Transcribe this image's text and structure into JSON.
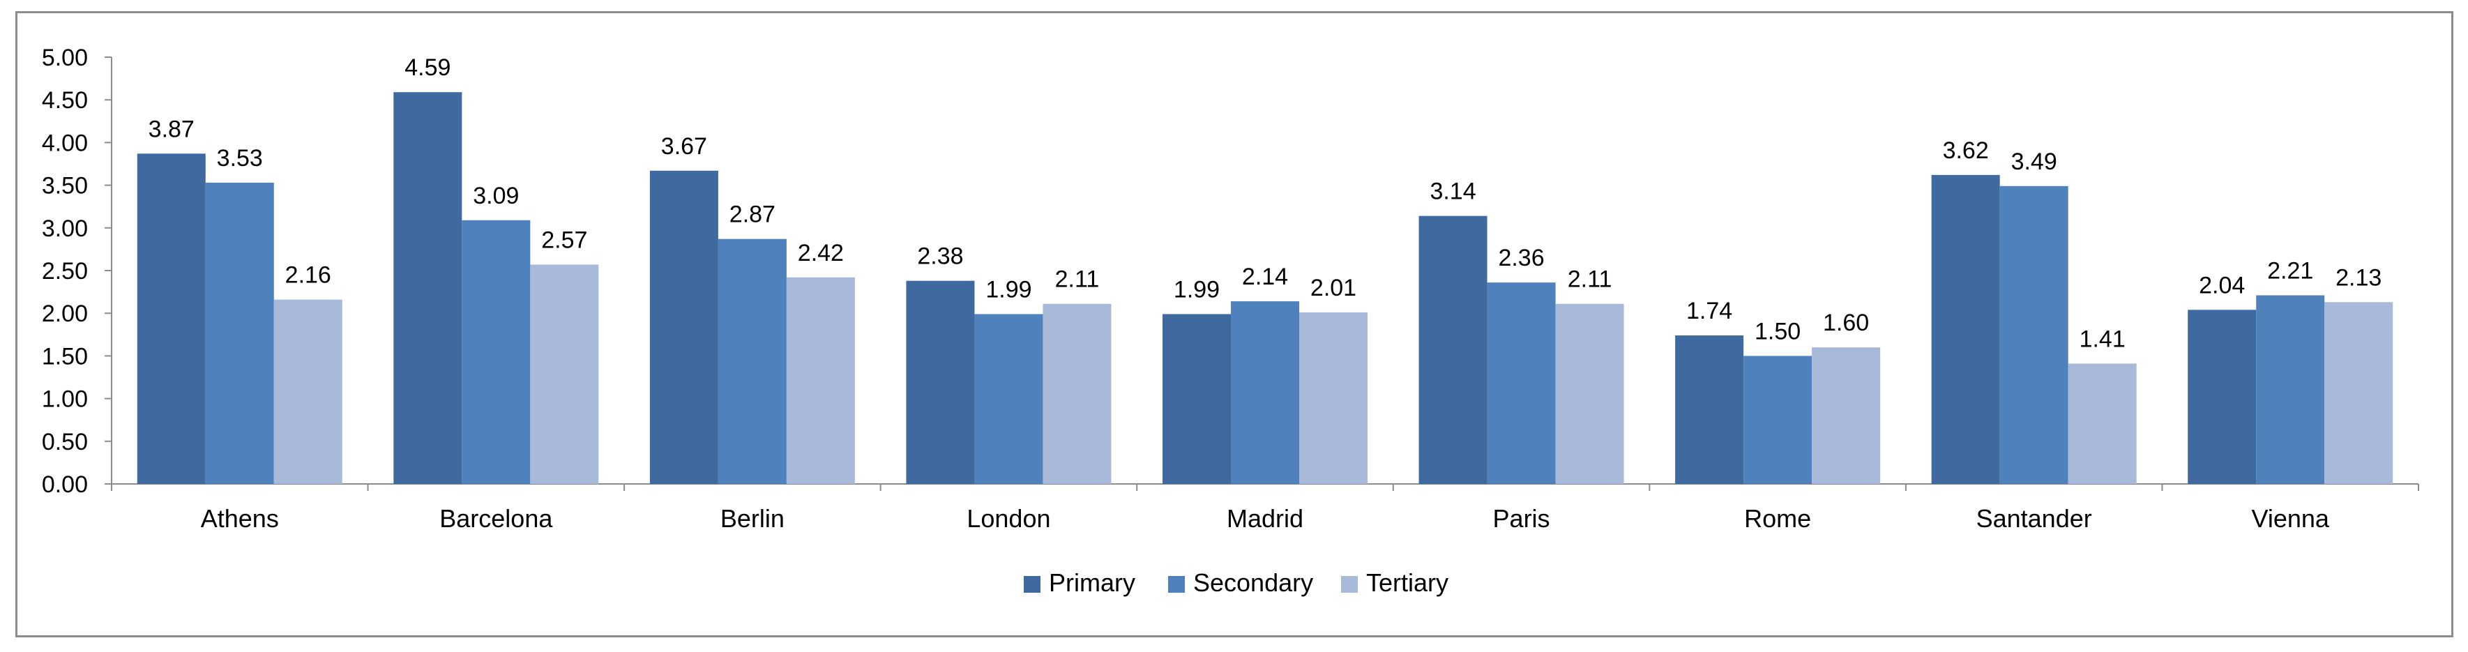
{
  "chart_data": {
    "type": "bar",
    "title": "",
    "xlabel": "",
    "ylabel": "",
    "categories": [
      "Athens",
      "Barcelona",
      "Berlin",
      "London",
      "Madrid",
      "Paris",
      "Rome",
      "Santander",
      "Vienna"
    ],
    "series": [
      {
        "name": "Primary",
        "color": "#3F6A9F",
        "values": [
          3.87,
          4.59,
          3.67,
          2.38,
          1.99,
          3.14,
          1.74,
          3.62,
          2.04
        ],
        "labels": [
          "3.87",
          "4.59",
          "3.67",
          "2.38",
          "1.99",
          "3.14",
          "1.74",
          "3.62",
          "2.04"
        ]
      },
      {
        "name": "Secondary",
        "color": "#4F81BD",
        "values": [
          3.53,
          3.09,
          2.87,
          1.99,
          2.14,
          2.36,
          1.5,
          3.49,
          2.21
        ],
        "labels": [
          "3.53",
          "3.09",
          "2.87",
          "1.99",
          "2.14",
          "2.36",
          "1.50",
          "3.49",
          "2.21"
        ]
      },
      {
        "name": "Tertiary",
        "color": "#A9B9D9",
        "values": [
          2.16,
          2.57,
          2.42,
          2.11,
          2.01,
          2.11,
          1.6,
          1.41,
          2.13
        ],
        "labels": [
          "2.16",
          "2.57",
          "2.42",
          "2.11",
          "2.01",
          "2.11",
          "1.60",
          "1.41",
          "2.13"
        ]
      }
    ],
    "ylim": [
      0,
      5
    ],
    "yticks": [
      "0.00",
      "0.50",
      "1.00",
      "1.50",
      "2.00",
      "2.50",
      "3.00",
      "3.50",
      "4.00",
      "4.50",
      "5.00"
    ],
    "grid": false,
    "legend_position": "bottom"
  }
}
